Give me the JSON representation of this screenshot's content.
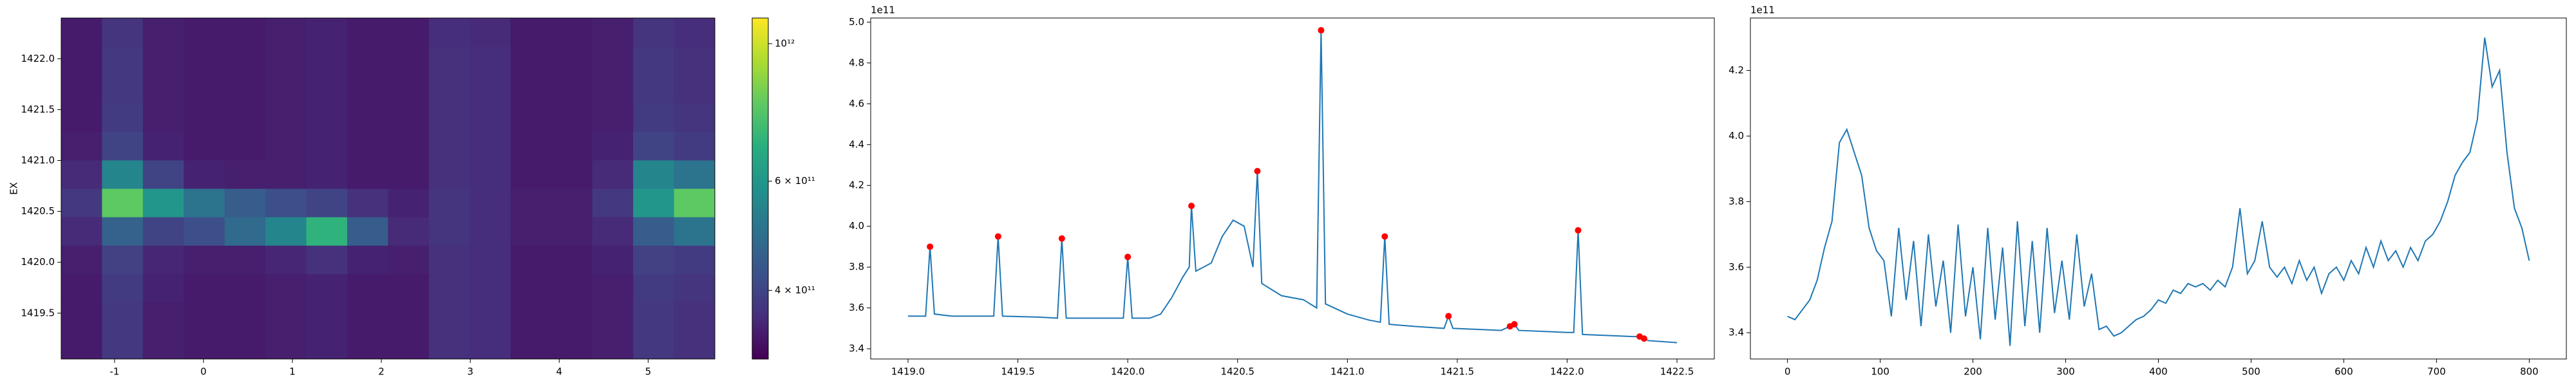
{
  "chart_data": [
    {
      "type": "heatmap",
      "ylabel": "EX",
      "xlim": [
        -1.6,
        5.75
      ],
      "ylim": [
        1419.05,
        1422.4
      ],
      "xticks": [
        -1,
        0,
        1,
        2,
        3,
        4,
        5
      ],
      "yticks": [
        1419.5,
        {
          "value": 1420.0,
          "label": "1420.0"
        },
        1420.5,
        {
          "value": 1421.0,
          "label": "1421.0"
        },
        1421.5,
        {
          "value": 1422.0,
          "label": "1422.0"
        }
      ],
      "colormap": "viridis",
      "colorbar": {
        "scale": "log",
        "lim": [
          310000000000,
          1100000000000
        ],
        "ticks": [
          {
            "value": 400000000000,
            "label": "4 × 10¹¹"
          },
          {
            "value": 600000000000,
            "label": "6 × 10¹¹"
          },
          {
            "value": 1000000000000,
            "label": "10¹²"
          }
        ]
      },
      "z": [
        [
          340000000000,
          380000000000,
          345000000000,
          340000000000,
          340000000000,
          345000000000,
          350000000000,
          340000000000,
          340000000000,
          370000000000,
          365000000000,
          340000000000,
          340000000000,
          345000000000,
          380000000000,
          370000000000
        ],
        [
          340000000000,
          380000000000,
          345000000000,
          340000000000,
          340000000000,
          345000000000,
          350000000000,
          340000000000,
          340000000000,
          370000000000,
          365000000000,
          340000000000,
          340000000000,
          345000000000,
          380000000000,
          370000000000
        ],
        [
          340000000000,
          385000000000,
          350000000000,
          340000000000,
          340000000000,
          345000000000,
          350000000000,
          340000000000,
          340000000000,
          370000000000,
          365000000000,
          340000000000,
          340000000000,
          345000000000,
          385000000000,
          375000000000
        ],
        [
          345000000000,
          395000000000,
          355000000000,
          345000000000,
          345000000000,
          355000000000,
          370000000000,
          350000000000,
          345000000000,
          370000000000,
          365000000000,
          340000000000,
          340000000000,
          350000000000,
          395000000000,
          385000000000
        ],
        [
          360000000000,
          460000000000,
          400000000000,
          420000000000,
          480000000000,
          550000000000,
          700000000000,
          450000000000,
          360000000000,
          375000000000,
          365000000000,
          345000000000,
          345000000000,
          360000000000,
          450000000000,
          500000000000
        ],
        [
          380000000000,
          800000000000,
          600000000000,
          500000000000,
          450000000000,
          420000000000,
          400000000000,
          370000000000,
          350000000000,
          375000000000,
          365000000000,
          345000000000,
          345000000000,
          380000000000,
          600000000000,
          800000000000
        ],
        [
          360000000000,
          550000000000,
          400000000000,
          350000000000,
          345000000000,
          345000000000,
          350000000000,
          340000000000,
          340000000000,
          370000000000,
          365000000000,
          340000000000,
          340000000000,
          360000000000,
          550000000000,
          500000000000
        ],
        [
          345000000000,
          400000000000,
          350000000000,
          340000000000,
          340000000000,
          345000000000,
          350000000000,
          340000000000,
          340000000000,
          370000000000,
          365000000000,
          340000000000,
          340000000000,
          350000000000,
          400000000000,
          385000000000
        ],
        [
          340000000000,
          385000000000,
          345000000000,
          340000000000,
          340000000000,
          345000000000,
          350000000000,
          340000000000,
          340000000000,
          370000000000,
          365000000000,
          340000000000,
          340000000000,
          345000000000,
          385000000000,
          375000000000
        ],
        [
          340000000000,
          380000000000,
          345000000000,
          340000000000,
          340000000000,
          345000000000,
          350000000000,
          340000000000,
          340000000000,
          370000000000,
          365000000000,
          340000000000,
          340000000000,
          345000000000,
          380000000000,
          370000000000
        ],
        [
          340000000000,
          380000000000,
          345000000000,
          340000000000,
          340000000000,
          345000000000,
          350000000000,
          340000000000,
          340000000000,
          370000000000,
          365000000000,
          340000000000,
          340000000000,
          345000000000,
          380000000000,
          370000000000
        ],
        [
          340000000000,
          375000000000,
          345000000000,
          340000000000,
          340000000000,
          345000000000,
          350000000000,
          340000000000,
          340000000000,
          365000000000,
          360000000000,
          340000000000,
          340000000000,
          345000000000,
          375000000000,
          365000000000
        ]
      ]
    },
    {
      "type": "line",
      "offset_text": "1e11",
      "xlim": [
        1418.83,
        1422.67
      ],
      "ylim": [
        3.35,
        5.02
      ],
      "xticks": [
        {
          "value": 1419.0,
          "label": "1419.0"
        },
        1419.5,
        {
          "value": 1420.0,
          "label": "1420.0"
        },
        1420.5,
        {
          "value": 1421.0,
          "label": "1421.0"
        },
        1421.5,
        {
          "value": 1422.0,
          "label": "1422.0"
        },
        1422.5
      ],
      "yticks": [
        3.4,
        3.6,
        3.8,
        {
          "value": 4.0,
          "label": "4.0"
        },
        4.2,
        4.4,
        4.6,
        4.8,
        {
          "value": 5.0,
          "label": "5.0"
        }
      ],
      "series": [
        {
          "type": "line",
          "color": "#1f77b4",
          "x": [
            1419.0,
            1419.08,
            1419.1,
            1419.12,
            1419.2,
            1419.39,
            1419.41,
            1419.43,
            1419.6,
            1419.68,
            1419.7,
            1419.72,
            1419.9,
            1419.98,
            1420.0,
            1420.02,
            1420.1,
            1420.15,
            1420.2,
            1420.25,
            1420.28,
            1420.29,
            1420.31,
            1420.38,
            1420.43,
            1420.48,
            1420.53,
            1420.57,
            1420.59,
            1420.61,
            1420.7,
            1420.8,
            1420.86,
            1420.88,
            1420.9,
            1421.0,
            1421.1,
            1421.15,
            1421.17,
            1421.19,
            1421.3,
            1421.44,
            1421.46,
            1421.48,
            1421.7,
            1421.74,
            1421.76,
            1421.78,
            1422.0,
            1422.03,
            1422.05,
            1422.07,
            1422.3,
            1422.33,
            1422.35,
            1422.37,
            1422.5
          ],
          "values": [
            3.56,
            3.56,
            3.9,
            3.57,
            3.56,
            3.56,
            3.95,
            3.56,
            3.555,
            3.55,
            3.94,
            3.55,
            3.55,
            3.55,
            3.85,
            3.55,
            3.55,
            3.57,
            3.65,
            3.75,
            3.8,
            4.1,
            3.78,
            3.82,
            3.95,
            4.03,
            4.0,
            3.8,
            4.27,
            3.72,
            3.66,
            3.64,
            3.6,
            4.96,
            3.62,
            3.57,
            3.54,
            3.53,
            3.95,
            3.52,
            3.51,
            3.5,
            3.56,
            3.5,
            3.49,
            3.51,
            3.52,
            3.49,
            3.48,
            3.48,
            3.98,
            3.47,
            3.46,
            3.46,
            3.45,
            3.44,
            3.43
          ]
        },
        {
          "type": "scatter",
          "color": "#ff0000",
          "x": [
            1419.1,
            1419.41,
            1419.7,
            1420.0,
            1420.29,
            1420.59,
            1420.88,
            1421.17,
            1421.46,
            1421.74,
            1421.76,
            1422.05,
            1422.33,
            1422.35
          ],
          "values": [
            3.9,
            3.95,
            3.94,
            3.85,
            4.1,
            4.27,
            4.96,
            3.95,
            3.56,
            3.51,
            3.52,
            3.98,
            3.46,
            3.45
          ]
        }
      ]
    },
    {
      "type": "line",
      "offset_text": "1e11",
      "xlim": [
        -40,
        840
      ],
      "ylim": [
        3.32,
        4.36
      ],
      "xticks": [
        0,
        100,
        200,
        300,
        400,
        500,
        600,
        700,
        800
      ],
      "yticks": [
        3.4,
        3.6,
        3.8,
        {
          "value": 4.0,
          "label": "4.0"
        },
        4.2
      ],
      "series": [
        {
          "type": "line",
          "color": "#1f77b4",
          "x": [
            0,
            8,
            16,
            24,
            32,
            40,
            48,
            56,
            64,
            72,
            80,
            88,
            96,
            104,
            112,
            120,
            128,
            136,
            144,
            152,
            160,
            168,
            176,
            184,
            192,
            200,
            208,
            216,
            224,
            232,
            240,
            248,
            256,
            264,
            272,
            280,
            288,
            296,
            304,
            312,
            320,
            328,
            336,
            344,
            352,
            360,
            368,
            376,
            384,
            392,
            400,
            408,
            416,
            424,
            432,
            440,
            448,
            456,
            464,
            472,
            480,
            488,
            496,
            504,
            512,
            520,
            528,
            536,
            544,
            552,
            560,
            568,
            576,
            584,
            592,
            600,
            608,
            616,
            624,
            632,
            640,
            648,
            656,
            664,
            672,
            680,
            688,
            696,
            704,
            712,
            720,
            728,
            736,
            744,
            752,
            760,
            768,
            776,
            784,
            792,
            800
          ],
          "values": [
            3.45,
            3.44,
            3.47,
            3.5,
            3.56,
            3.66,
            3.74,
            3.98,
            4.02,
            3.95,
            3.88,
            3.72,
            3.65,
            3.62,
            3.45,
            3.72,
            3.5,
            3.68,
            3.42,
            3.7,
            3.48,
            3.62,
            3.4,
            3.73,
            3.45,
            3.6,
            3.38,
            3.72,
            3.44,
            3.66,
            3.36,
            3.74,
            3.42,
            3.68,
            3.4,
            3.72,
            3.46,
            3.62,
            3.44,
            3.7,
            3.48,
            3.58,
            3.41,
            3.42,
            3.39,
            3.4,
            3.42,
            3.44,
            3.45,
            3.47,
            3.5,
            3.49,
            3.53,
            3.52,
            3.55,
            3.54,
            3.55,
            3.53,
            3.56,
            3.54,
            3.6,
            3.78,
            3.58,
            3.62,
            3.74,
            3.6,
            3.57,
            3.6,
            3.55,
            3.62,
            3.56,
            3.6,
            3.52,
            3.58,
            3.6,
            3.56,
            3.62,
            3.58,
            3.66,
            3.6,
            3.68,
            3.62,
            3.65,
            3.6,
            3.66,
            3.62,
            3.68,
            3.7,
            3.74,
            3.8,
            3.88,
            3.92,
            3.95,
            4.05,
            4.3,
            4.15,
            4.2,
            3.95,
            3.78,
            3.72,
            3.62
          ]
        }
      ]
    }
  ]
}
